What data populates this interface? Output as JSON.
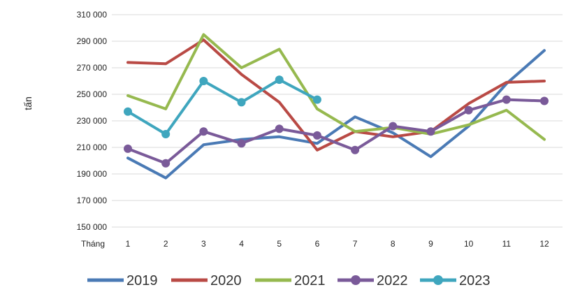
{
  "chart_data": {
    "type": "line",
    "title": "",
    "xlabel": "Tháng",
    "ylabel": "tấn",
    "categories": [
      "1",
      "2",
      "3",
      "4",
      "5",
      "6",
      "7",
      "8",
      "9",
      "10",
      "11",
      "12"
    ],
    "y_ticks": [
      "150 000",
      "170 000",
      "190 000",
      "210 000",
      "230 000",
      "250 000",
      "270 000",
      "290 000",
      "310 000"
    ],
    "ylim": [
      150000,
      310000
    ],
    "grid": true,
    "legend_position": "bottom",
    "series": [
      {
        "name": "2019",
        "color": "#4a7ab5",
        "markers": false,
        "values": [
          202000,
          187000,
          212000,
          216000,
          218000,
          213000,
          233000,
          221000,
          203000,
          226000,
          258000,
          283000
        ]
      },
      {
        "name": "2020",
        "color": "#b94a45",
        "markers": false,
        "values": [
          274000,
          273000,
          291000,
          265000,
          244000,
          208000,
          222000,
          218000,
          222000,
          243000,
          259000,
          260000
        ]
      },
      {
        "name": "2021",
        "color": "#96b94f",
        "markers": false,
        "values": [
          249000,
          239000,
          295000,
          270000,
          284000,
          239000,
          222000,
          225000,
          220000,
          227000,
          238000,
          216000
        ]
      },
      {
        "name": "2022",
        "color": "#7a5a99",
        "markers": true,
        "values": [
          209000,
          198000,
          222000,
          213000,
          224000,
          219000,
          208000,
          226000,
          222000,
          238000,
          246000,
          245000
        ]
      },
      {
        "name": "2023",
        "color": "#3fa6be",
        "markers": true,
        "values": [
          237000,
          220000,
          260000,
          244000,
          261000,
          246000,
          null,
          null,
          null,
          null,
          null,
          null
        ]
      }
    ]
  }
}
